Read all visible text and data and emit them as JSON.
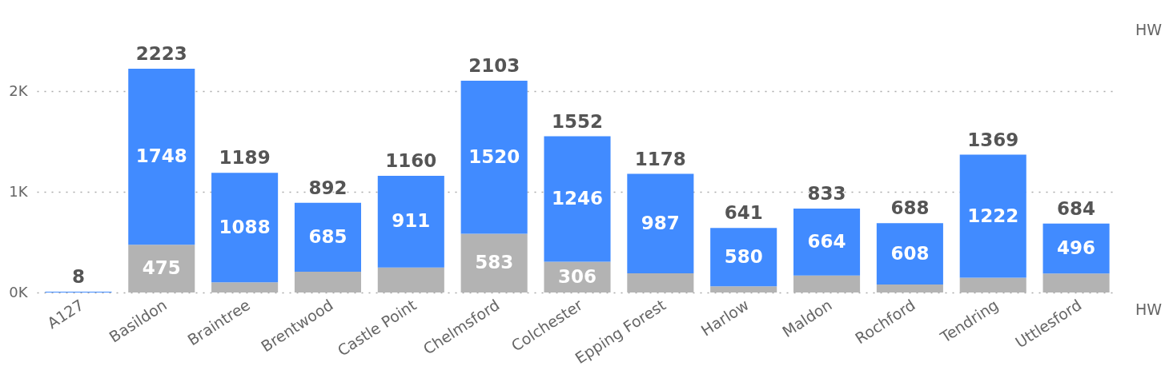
{
  "chart_data": {
    "type": "bar",
    "stacked": true,
    "categories": [
      "A127",
      "Basildon",
      "Braintree",
      "Brentwood",
      "Castle Point",
      "Chelmsford",
      "Colchester",
      "Epping Forest",
      "Harlow",
      "Maldon",
      "Rochford",
      "Tendring",
      "Uttlesford"
    ],
    "series": [
      {
        "color": "#b3b3b3",
        "values": [
          0,
          475,
          101,
          207,
          249,
          583,
          306,
          191,
          61,
          169,
          80,
          147,
          188
        ],
        "value_labels": [
          null,
          "475",
          null,
          null,
          null,
          "583",
          "306",
          null,
          null,
          null,
          null,
          null,
          null
        ]
      },
      {
        "color": "#418bff",
        "values": [
          8,
          1748,
          1088,
          685,
          911,
          1520,
          1246,
          987,
          580,
          664,
          608,
          1222,
          496
        ],
        "value_labels": [
          null,
          "1748",
          "1088",
          "685",
          "911",
          "1520",
          "1246",
          "987",
          "580",
          "664",
          "608",
          "1222",
          "496"
        ]
      }
    ],
    "totals": [
      "8",
      "2223",
      "1189",
      "892",
      "1160",
      "2103",
      "1552",
      "1178",
      "641",
      "833",
      "688",
      "1369",
      "684"
    ],
    "ylim": [
      0,
      2223
    ],
    "yticks": [
      {
        "value": 0,
        "label": "0K"
      },
      {
        "value": 1000,
        "label": "1K"
      },
      {
        "value": 2000,
        "label": "2K"
      }
    ],
    "grid": "y",
    "annotations": [
      "HW",
      "HW"
    ]
  }
}
